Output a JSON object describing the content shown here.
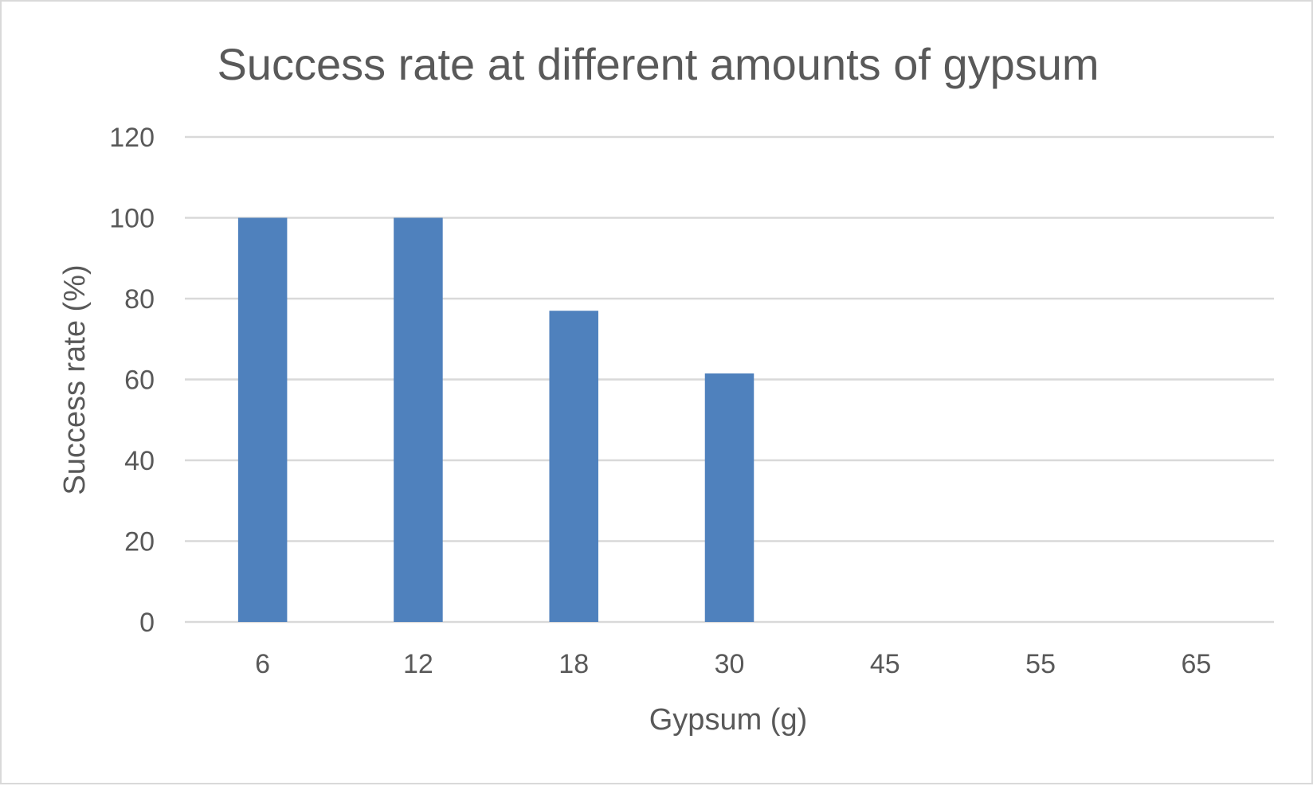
{
  "chart_data": {
    "type": "bar",
    "title": "Success rate at different amounts of gypsum",
    "xlabel": "Gypsum (g)",
    "ylabel": "Success rate (%)",
    "categories": [
      "6",
      "12",
      "18",
      "30",
      "45",
      "55",
      "65"
    ],
    "values": [
      100,
      100,
      77,
      61.5,
      0,
      0,
      0
    ],
    "ylim": [
      0,
      120
    ],
    "yticks": [
      "0",
      "20",
      "40",
      "60",
      "80",
      "100",
      "120"
    ],
    "grid": true,
    "legend": "none",
    "bar_color": "#4f81bd",
    "grid_color": "#d9d9d9",
    "text_color": "#595959"
  }
}
